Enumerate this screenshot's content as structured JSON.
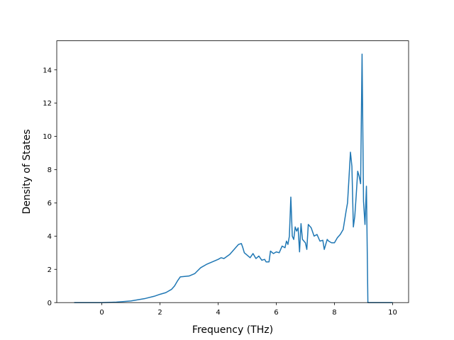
{
  "chart_data": {
    "type": "line",
    "title": "",
    "xlabel": "Frequency (THz)",
    "ylabel": "Density of States",
    "xlim": [
      -1.55,
      10.55
    ],
    "ylim": [
      0,
      15.75
    ],
    "xticks": [
      0,
      2,
      4,
      6,
      8,
      10
    ],
    "yticks": [
      0,
      2,
      4,
      6,
      8,
      10,
      12,
      14
    ],
    "grid": false,
    "color": "#1f77b4",
    "series": [
      {
        "name": "",
        "points": [
          [
            -0.95,
            0.0
          ],
          [
            -0.5,
            0.0
          ],
          [
            0.0,
            0.0
          ],
          [
            0.5,
            0.03
          ],
          [
            1.0,
            0.1
          ],
          [
            1.5,
            0.25
          ],
          [
            1.8,
            0.38
          ],
          [
            2.0,
            0.5
          ],
          [
            2.2,
            0.6
          ],
          [
            2.4,
            0.8
          ],
          [
            2.5,
            1.0
          ],
          [
            2.6,
            1.3
          ],
          [
            2.7,
            1.55
          ],
          [
            3.0,
            1.6
          ],
          [
            3.2,
            1.75
          ],
          [
            3.4,
            2.1
          ],
          [
            3.6,
            2.3
          ],
          [
            3.8,
            2.45
          ],
          [
            4.0,
            2.6
          ],
          [
            4.1,
            2.7
          ],
          [
            4.2,
            2.65
          ],
          [
            4.4,
            2.9
          ],
          [
            4.6,
            3.3
          ],
          [
            4.7,
            3.5
          ],
          [
            4.8,
            3.55
          ],
          [
            4.85,
            3.3
          ],
          [
            4.9,
            3.0
          ],
          [
            5.0,
            2.85
          ],
          [
            5.1,
            2.7
          ],
          [
            5.2,
            2.95
          ],
          [
            5.3,
            2.65
          ],
          [
            5.4,
            2.8
          ],
          [
            5.5,
            2.55
          ],
          [
            5.6,
            2.6
          ],
          [
            5.65,
            2.45
          ],
          [
            5.75,
            2.45
          ],
          [
            5.8,
            3.1
          ],
          [
            5.9,
            2.95
          ],
          [
            6.0,
            3.05
          ],
          [
            6.1,
            3.0
          ],
          [
            6.2,
            3.4
          ],
          [
            6.3,
            3.3
          ],
          [
            6.35,
            3.7
          ],
          [
            6.4,
            3.5
          ],
          [
            6.45,
            4.0
          ],
          [
            6.5,
            6.35
          ],
          [
            6.55,
            4.0
          ],
          [
            6.6,
            3.8
          ],
          [
            6.65,
            4.55
          ],
          [
            6.7,
            4.3
          ],
          [
            6.75,
            4.5
          ],
          [
            6.8,
            3.05
          ],
          [
            6.85,
            4.75
          ],
          [
            6.9,
            3.8
          ],
          [
            7.0,
            3.6
          ],
          [
            7.05,
            3.2
          ],
          [
            7.1,
            4.7
          ],
          [
            7.2,
            4.5
          ],
          [
            7.3,
            4.0
          ],
          [
            7.4,
            4.1
          ],
          [
            7.5,
            3.7
          ],
          [
            7.6,
            3.75
          ],
          [
            7.65,
            3.2
          ],
          [
            7.7,
            3.5
          ],
          [
            7.75,
            3.8
          ],
          [
            7.8,
            3.7
          ],
          [
            7.9,
            3.6
          ],
          [
            8.0,
            3.6
          ],
          [
            8.1,
            3.9
          ],
          [
            8.2,
            4.1
          ],
          [
            8.3,
            4.4
          ],
          [
            8.4,
            5.5
          ],
          [
            8.45,
            6.0
          ],
          [
            8.5,
            7.5
          ],
          [
            8.55,
            9.05
          ],
          [
            8.6,
            8.2
          ],
          [
            8.65,
            4.55
          ],
          [
            8.7,
            5.2
          ],
          [
            8.75,
            6.5
          ],
          [
            8.8,
            7.9
          ],
          [
            8.85,
            7.6
          ],
          [
            8.9,
            7.15
          ],
          [
            8.95,
            14.95
          ],
          [
            9.0,
            6.1
          ],
          [
            9.05,
            4.7
          ],
          [
            9.1,
            7.0
          ],
          [
            9.15,
            0.0
          ],
          [
            9.5,
            0.0
          ],
          [
            10.0,
            0.0
          ]
        ]
      }
    ]
  }
}
